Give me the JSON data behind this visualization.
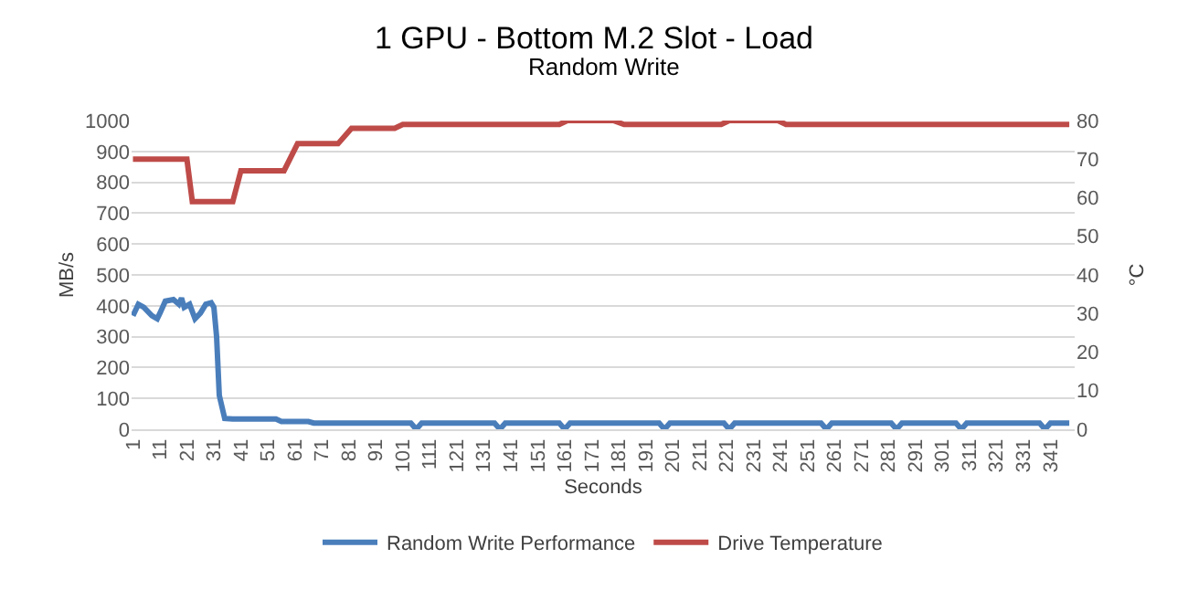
{
  "chart_data": {
    "type": "line",
    "title": "1 GPU - Bottom M.2 Slot - Load",
    "subtitle": "Random Write",
    "xlabel": "Seconds",
    "ylabel": "MB/s",
    "y2label": "°C",
    "xlim": [
      0.5,
      350
    ],
    "xticks": [
      1,
      11,
      21,
      31,
      41,
      51,
      61,
      71,
      81,
      91,
      101,
      111,
      121,
      131,
      141,
      151,
      161,
      171,
      181,
      191,
      201,
      211,
      221,
      231,
      241,
      251,
      261,
      271,
      281,
      291,
      301,
      311,
      321,
      331,
      341
    ],
    "ylim": [
      0,
      1000
    ],
    "yticks": [
      0,
      100,
      200,
      300,
      400,
      500,
      600,
      700,
      800,
      900,
      1000
    ],
    "y2lim": [
      0,
      80
    ],
    "y2ticks": [
      0,
      10,
      20,
      30,
      40,
      50,
      60,
      70,
      80
    ],
    "grid": "y",
    "legend": "bottom",
    "marker": "none",
    "line_style": "solid",
    "series": [
      {
        "name": "Random Write Performance",
        "color": "#4a7ebb",
        "x": [
          1,
          3,
          5,
          8,
          10,
          11,
          13,
          16,
          18,
          19,
          20,
          22,
          24,
          26,
          28,
          30,
          31,
          32,
          33,
          35,
          38,
          54,
          56,
          66,
          68,
          104,
          106,
          108,
          135,
          137,
          139,
          159,
          161,
          163,
          196,
          198,
          200,
          220,
          222,
          224,
          256,
          258,
          260,
          282,
          284,
          286,
          306,
          308,
          310,
          337,
          339,
          341,
          348
        ],
        "values": [
          368,
          405,
          395,
          368,
          358,
          376,
          415,
          420,
          405,
          425,
          395,
          405,
          358,
          376,
          405,
          410,
          395,
          300,
          110,
          35,
          33,
          33,
          25,
          25,
          20,
          20,
          0,
          20,
          20,
          0,
          20,
          20,
          0,
          20,
          20,
          0,
          20,
          20,
          0,
          20,
          20,
          0,
          20,
          20,
          0,
          20,
          20,
          0,
          20,
          20,
          0,
          20,
          20
        ]
      },
      {
        "name": "Drive Temperature",
        "color": "#be4b48",
        "axis": "y2",
        "x": [
          1,
          21,
          23,
          38,
          41,
          57,
          62,
          77,
          82,
          98,
          101,
          159,
          162,
          179,
          183,
          219,
          222,
          240,
          243,
          348
        ],
        "values": [
          70,
          70,
          59,
          59,
          67,
          67,
          74,
          74,
          78,
          78,
          79,
          79,
          80,
          80,
          79,
          79,
          80,
          80,
          79,
          79
        ]
      }
    ]
  }
}
